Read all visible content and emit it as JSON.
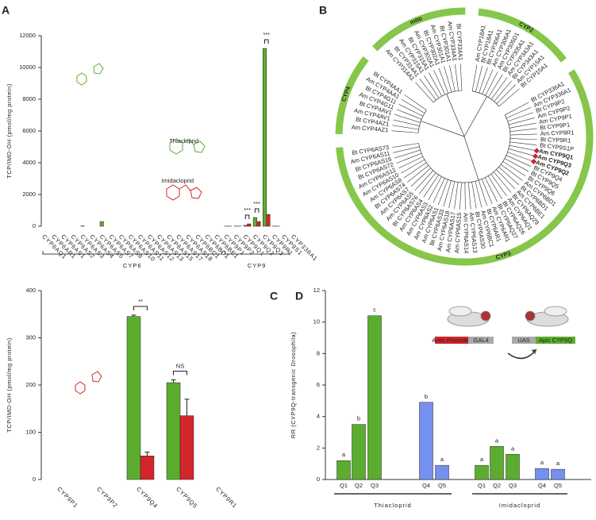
{
  "chart_data": [
    {
      "panel": "A",
      "type": "bar",
      "ylabel": "TCP/IMD-OH (pmol/mg protein)",
      "categories": [
        "CYP6AQ1",
        "CYP6AR1",
        "CYP6AS1",
        "CYP6AS2",
        "CYP6AS3",
        "CYP6AS4",
        "CYP6AS5",
        "CYP6AS7",
        "CYP6AS8",
        "CYP6AS10",
        "CYP6AS11",
        "CYP6AS12",
        "CYP6AS13",
        "CYP6AS15",
        "CYP6AS17",
        "CYP6AS18",
        "CYP6BC1",
        "CYP6BD1",
        "CYP6BE1",
        "CYP9P1",
        "CYP9P2",
        "CYP9Q1",
        "CYP9Q2",
        "CYP9Q3",
        "CYP9R1",
        "CYP9S1",
        "CYP336A1"
      ],
      "series": [
        {
          "name": "Thiacloprid",
          "color": "#5cad2f",
          "values": [
            0,
            0,
            0,
            0,
            20,
            0,
            300,
            0,
            0,
            0,
            0,
            0,
            0,
            0,
            0,
            0,
            0,
            0,
            0,
            10,
            10,
            60,
            550,
            11200,
            10,
            0,
            0
          ]
        },
        {
          "name": "Imidacloprid",
          "color": "#d3262a",
          "values": [
            0,
            0,
            0,
            0,
            0,
            0,
            0,
            0,
            0,
            0,
            0,
            0,
            0,
            0,
            0,
            0,
            0,
            0,
            0,
            5,
            5,
            150,
            300,
            750,
            5,
            0,
            0
          ]
        }
      ],
      "ylim": [
        0,
        12000
      ],
      "yticks": [
        0,
        2000,
        4000,
        6000,
        8000,
        10000,
        12000
      ],
      "groups": [
        {
          "label": "CYP6",
          "from": 0,
          "to": 18
        },
        {
          "label": "CYP9",
          "from": 19,
          "to": 25
        }
      ],
      "significance": [
        {
          "category": 21,
          "label": "***"
        },
        {
          "category": 22,
          "label": "***"
        },
        {
          "category": 23,
          "label": "***"
        }
      ]
    },
    {
      "panel": "B",
      "type": "tree",
      "colors": {
        "Am": "#62b236",
        "Bt": "#4aa3df"
      },
      "ring_color": "#86c64a",
      "clades": [
        {
          "label": "CYP2",
          "leaves": [
            {
              "label": "Am CYP18A1"
            },
            {
              "label": "Bt CYP18A1"
            },
            {
              "label": "Bt CYP306A1"
            },
            {
              "label": "Am CYP306A1"
            },
            {
              "label": "Am CYP305D1"
            },
            {
              "label": "Bt CYP305A1"
            },
            {
              "label": "Am CYP343A1"
            },
            {
              "label": "Bt CYP343A1"
            },
            {
              "label": "Am CYP15A1"
            },
            {
              "label": "Bt CYP15A1"
            }
          ]
        },
        {
          "label": "CYP3",
          "leaves": [
            {
              "label": "Bt CYP336A1"
            },
            {
              "label": "Am CYP336A1"
            },
            {
              "label": "Bt CYP9P2"
            },
            {
              "label": "Am CYP9P2"
            },
            {
              "label": "Am CYP9P1"
            },
            {
              "label": "Bt CYP9P1"
            },
            {
              "label": "Am CYP9R1"
            },
            {
              "label": "Bt CYP9R1"
            },
            {
              "label": "Bt CYP9S1P"
            },
            {
              "label": "Am CYP9Q1",
              "highlight": true
            },
            {
              "label": "Am CYP9Q3",
              "highlight": true
            },
            {
              "label": "Am CYP9Q2",
              "highlight": true
            },
            {
              "label": "Bt CYP9Q4"
            },
            {
              "label": "Bt CYP9Q5"
            },
            {
              "label": "Bt CYP9Q6"
            },
            {
              "label": "Am CYP6BD1"
            },
            {
              "label": "Bt CYP6BD1"
            },
            {
              "label": "Am CYP6BE1"
            },
            {
              "label": "Bt CYP6AQ29"
            },
            {
              "label": "Am CYP6AQ1"
            },
            {
              "label": "Bt CYP6AQ26"
            },
            {
              "label": "Bt CYP6AQ27"
            },
            {
              "label": "Am CYP6AR1"
            },
            {
              "label": "Bt CYP6AR1"
            },
            {
              "label": "Am CYP6BC1"
            },
            {
              "label": "Bt CYP6AS30"
            },
            {
              "label": "Am CYP6AS13"
            },
            {
              "label": "Am CYP6AS14"
            },
            {
              "label": "Am CYP6AS15"
            },
            {
              "label": "Am CYP6AS17"
            },
            {
              "label": "Am CYP6AS18"
            },
            {
              "label": "Bt CYP6AS33"
            },
            {
              "label": "Am CYP6AS1"
            },
            {
              "label": "Am CYP6AS2"
            },
            {
              "label": "Am CYP6AS3"
            },
            {
              "label": "Am CYP6AS4"
            },
            {
              "label": "Bt CYP6AS76"
            },
            {
              "label": "Am CYP6AS5"
            },
            {
              "label": "Am CYP6AS7"
            },
            {
              "label": "Bt CYP6AS74"
            },
            {
              "label": "Am CYP6AS8"
            },
            {
              "label": "Am CYP6AS10"
            },
            {
              "label": "Am CYP6AS12"
            },
            {
              "label": "Bt CYP6AS72"
            },
            {
              "label": "Bt CYP6AS16"
            },
            {
              "label": "Am CYP6AS11"
            },
            {
              "label": "Bt CYP6AS73"
            }
          ]
        },
        {
          "label": "CYP4",
          "leaves": [
            {
              "label": "Am CYP4AZ1"
            },
            {
              "label": "Bt CYP4AZ1"
            },
            {
              "label": "Am CYP4AV1"
            },
            {
              "label": "Bt CYP4AV1"
            },
            {
              "label": "Am CYP4G11"
            },
            {
              "label": "Bt CYP4G11"
            },
            {
              "label": "Am CYP4AA1"
            },
            {
              "label": "Bt CYP4AA1"
            }
          ]
        },
        {
          "label": "mito",
          "leaves": [
            {
              "label": "Am CYP314A1"
            },
            {
              "label": "Bt CYP314A1"
            },
            {
              "label": "Am CYP315A1"
            },
            {
              "label": "Bt CYP315A1"
            },
            {
              "label": "Am CYP302A1"
            },
            {
              "label": "Bt CYP302A1"
            },
            {
              "label": "Am CYP301A1"
            },
            {
              "label": "Bt CYP301A1"
            },
            {
              "label": "Am CYP334A1"
            },
            {
              "label": "Bt CYP334A1"
            }
          ]
        }
      ]
    },
    {
      "panel": "C",
      "type": "bar",
      "ylabel": "TCP/IMD-OH (pmol/mg protein)",
      "categories": [
        "CYP9P1",
        "CYP9P2",
        "CYP9Q4",
        "CYP9Q5",
        "CYP9R1"
      ],
      "series": [
        {
          "name": "Thiacloprid",
          "color": "#5cad2f",
          "values": [
            0,
            0,
            345,
            205,
            0
          ],
          "errors": [
            0,
            0,
            3,
            6,
            0
          ]
        },
        {
          "name": "Imidacloprid",
          "color": "#d3262a",
          "values": [
            0,
            0,
            50,
            135,
            0
          ],
          "errors": [
            0,
            0,
            8,
            35,
            0
          ]
        }
      ],
      "ylim": [
        0,
        400
      ],
      "yticks": [
        0,
        100,
        200,
        300,
        400
      ],
      "significance": [
        {
          "category": 2,
          "label": "**"
        },
        {
          "category": 3,
          "label": "NS"
        }
      ]
    },
    {
      "panel": "D",
      "type": "bar",
      "ylabel": "RR (CYP9Q-transgenic Drosophila)",
      "categories": [
        "Q1",
        "Q2",
        "Q3",
        "Q4",
        "Q5",
        "Q1",
        "Q2",
        "Q3",
        "Q4",
        "Q5"
      ],
      "values": [
        1.2,
        3.5,
        10.4,
        4.9,
        0.9,
        0.9,
        2.1,
        1.6,
        0.7,
        0.65
      ],
      "colors": [
        "#5cad2f",
        "#5cad2f",
        "#5cad2f",
        "#7590ee",
        "#7590ee",
        "#5cad2f",
        "#5cad2f",
        "#5cad2f",
        "#7590ee",
        "#7590ee"
      ],
      "letters": [
        "a",
        "b",
        "c",
        "b",
        "a",
        "a",
        "a",
        "a",
        "a",
        "a"
      ],
      "ylim": [
        0,
        12
      ],
      "yticks": [
        0,
        2,
        4,
        6,
        8,
        10,
        12
      ],
      "groups": [
        {
          "label": "Thiacloprid",
          "from": 0,
          "to": 4
        },
        {
          "label": "Imidacloprid",
          "from": 5,
          "to": 9
        }
      ],
      "construct": [
        "Actin Promoter",
        "GAL4",
        "UAS",
        "Apis CYP9Q"
      ]
    }
  ]
}
